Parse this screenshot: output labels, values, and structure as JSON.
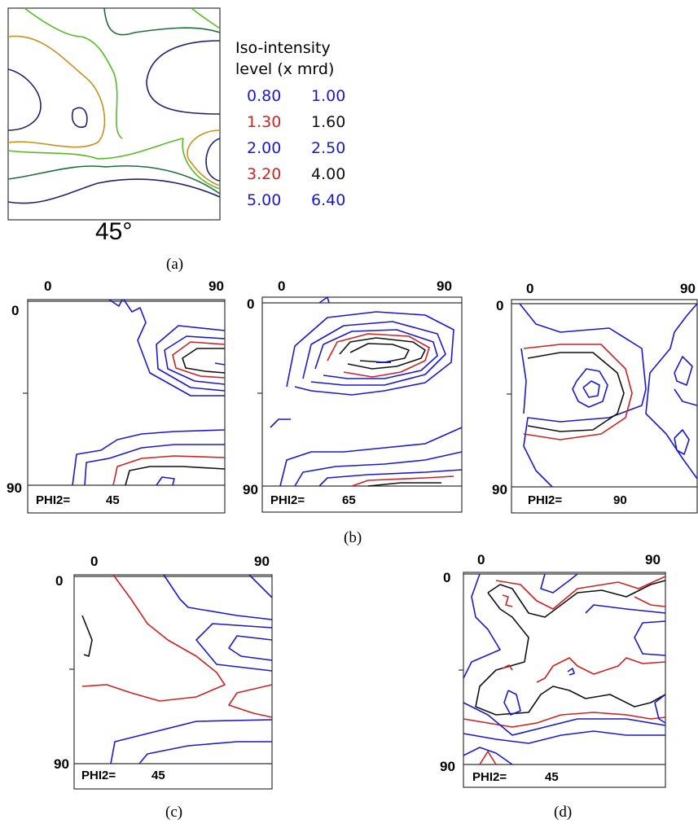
{
  "panel_a": {
    "angle_label": "45°",
    "legend_title_line1": "Iso-intensity",
    "legend_title_line2": "level (x mrd)",
    "levels": [
      {
        "value": "0.80",
        "color": "#1a1acc"
      },
      {
        "value": "1.00",
        "color": "#1a1acc"
      },
      {
        "value": "1.30",
        "color": "#cc2222"
      },
      {
        "value": "1.60",
        "color": "#111111"
      },
      {
        "value": "2.00",
        "color": "#1a1acc"
      },
      {
        "value": "2.50",
        "color": "#1a1acc"
      },
      {
        "value": "3.20",
        "color": "#cc2222"
      },
      {
        "value": "4.00",
        "color": "#111111"
      },
      {
        "value": "5.00",
        "color": "#1a1acc"
      },
      {
        "value": "6.40",
        "color": "#1a1acc"
      }
    ],
    "caption": "(a)"
  },
  "panel_b": {
    "caption": "(b)",
    "plots": [
      {
        "x_start": "0",
        "x_end": "90",
        "y_start": "0",
        "y_end": "90",
        "phi_label": "PHI2=",
        "phi_value": "45"
      },
      {
        "x_start": "0",
        "x_end": "90",
        "y_start": "0",
        "y_end": "90",
        "phi_label": "PHI2=",
        "phi_value": "65"
      },
      {
        "x_start": "0",
        "x_end": "90",
        "y_start": "0",
        "y_end": "90",
        "phi_label": "PHI2=",
        "phi_value": "90"
      }
    ]
  },
  "panel_c": {
    "caption": "(c)",
    "x_start": "0",
    "x_end": "90",
    "y_start": "0",
    "y_end": "90",
    "phi_label": "PHI2=",
    "phi_value": "45"
  },
  "panel_d": {
    "caption": "(d)",
    "x_start": "0",
    "x_end": "90",
    "y_start": "0",
    "y_end": "90",
    "phi_label": "PHI2=",
    "phi_value": "45"
  },
  "colors": {
    "blue": "#1a1acc",
    "red": "#cc2222",
    "black": "#111111",
    "green": "#55bb22",
    "dark_green": "#1e6e3c",
    "orange": "#c89020",
    "navy": "#22226e"
  }
}
